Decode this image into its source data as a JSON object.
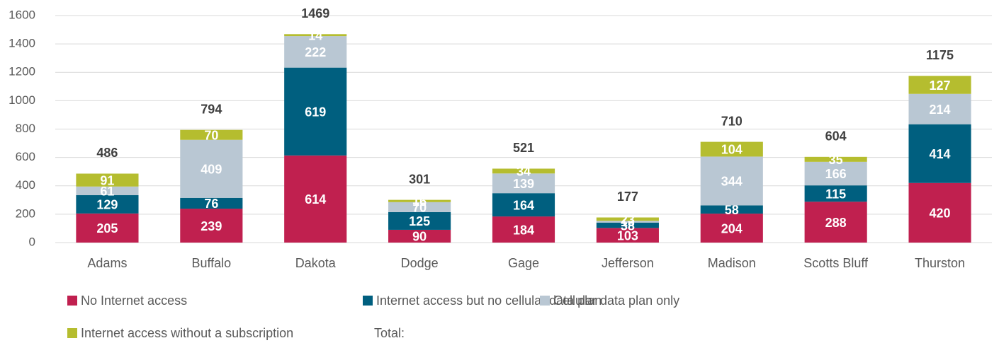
{
  "chart_data": {
    "type": "stacked_bar",
    "categories": [
      "Adams",
      "Buffalo",
      "Dakota",
      "Dodge",
      "Gage",
      "Jefferson",
      "Madison",
      "Scotts Bluff",
      "Thurston"
    ],
    "series": [
      {
        "name": "No Internet access",
        "color": "#c0204f",
        "values": [
          205,
          239,
          614,
          90,
          184,
          103,
          204,
          288,
          420
        ]
      },
      {
        "name": "Internet access but no cellular data plan",
        "color": "#005f7f",
        "values": [
          129,
          76,
          619,
          125,
          164,
          38,
          58,
          115,
          414
        ]
      },
      {
        "name": "Cellular data plan only",
        "color": "#b9c7d3",
        "values": [
          61,
          409,
          222,
          70,
          139,
          13,
          344,
          166,
          214
        ]
      },
      {
        "name": "Internet access without a subscription",
        "color": "#b5bd2f",
        "values": [
          91,
          70,
          14,
          16,
          34,
          23,
          104,
          35,
          127
        ]
      }
    ],
    "total_name": "Total:",
    "totals": [
      486,
      794,
      1469,
      301,
      521,
      177,
      710,
      604,
      1175
    ],
    "ylim": [
      0,
      1600
    ],
    "yticks": [
      0,
      200,
      400,
      600,
      800,
      1000,
      1200,
      1400,
      1600
    ],
    "grid": true
  }
}
